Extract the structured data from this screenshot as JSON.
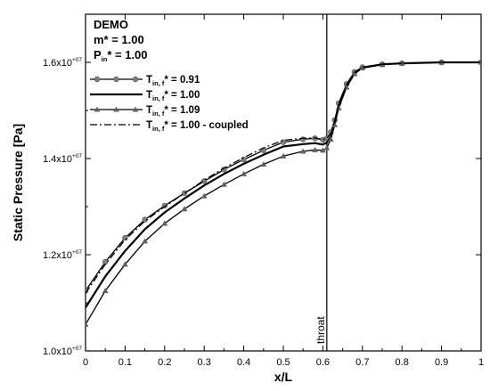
{
  "chart_data": {
    "type": "line",
    "title": "",
    "xlabel": "x/L",
    "ylabel": "Static Pressure [Pa]",
    "xlim": [
      0,
      1
    ],
    "ylim": [
      10000000,
      17000000
    ],
    "x_ticks": [
      0,
      0.1,
      0.2,
      0.3,
      0.4,
      0.5,
      0.6,
      0.7,
      0.8,
      0.9,
      1
    ],
    "x_tick_labels": [
      "0",
      "0.1",
      "0.2",
      "0.3",
      "0.4",
      "0.5",
      "0.6",
      "0.7",
      "0.8",
      "0.9",
      "1"
    ],
    "y_ticks": [
      10000000,
      12000000,
      14000000,
      16000000
    ],
    "y_tick_labels": [
      {
        "mant": "1.0x10",
        "exp": "+07"
      },
      {
        "mant": "1.2x10",
        "exp": "+07"
      },
      {
        "mant": "1.4x10",
        "exp": "+07"
      },
      {
        "mant": "1.6x10",
        "exp": "+07"
      }
    ],
    "grid": false,
    "legend_position": "top-left",
    "header": {
      "line1": "DEMO",
      "line2": "m* = 1.00",
      "line3_main": "P",
      "line3_sub": "in",
      "line3_rest": "* = 1.00"
    },
    "annotation": {
      "text": "throat",
      "x": 0.61
    },
    "series": [
      {
        "name_main": "T",
        "name_sub": "in, f",
        "name_rest": "* = 0.91",
        "color": "#000000",
        "marker": "circle",
        "marker_color": "#808080",
        "dash": "none",
        "width": 1.3,
        "x": [
          0,
          0.05,
          0.1,
          0.15,
          0.2,
          0.25,
          0.3,
          0.35,
          0.4,
          0.45,
          0.5,
          0.55,
          0.58,
          0.6,
          0.61,
          0.62,
          0.63,
          0.64,
          0.66,
          0.68,
          0.7,
          0.75,
          0.8,
          0.9,
          1.0
        ],
        "y": [
          11250000,
          11850000,
          12350000,
          12730000,
          13020000,
          13280000,
          13530000,
          13770000,
          13980000,
          14170000,
          14340000,
          14400000,
          14420000,
          14390000,
          14420000,
          14550000,
          14800000,
          15150000,
          15550000,
          15800000,
          15900000,
          15960000,
          15980000,
          16000000,
          16000000
        ]
      },
      {
        "name_main": "T",
        "name_sub": "in, f",
        "name_rest": "* = 1.00",
        "color": "#000000",
        "marker": "none",
        "dash": "none",
        "width": 2.2,
        "x": [
          0,
          0.05,
          0.1,
          0.15,
          0.2,
          0.25,
          0.3,
          0.35,
          0.4,
          0.45,
          0.5,
          0.55,
          0.58,
          0.6,
          0.61,
          0.62,
          0.63,
          0.64,
          0.66,
          0.68,
          0.7,
          0.75,
          0.8,
          0.9,
          1.0
        ],
        "y": [
          10900000,
          11550000,
          12080000,
          12530000,
          12880000,
          13170000,
          13440000,
          13680000,
          13890000,
          14080000,
          14250000,
          14300000,
          14320000,
          14290000,
          14330000,
          14450000,
          14750000,
          15100000,
          15520000,
          15780000,
          15890000,
          15960000,
          15980000,
          16000000,
          16000000
        ]
      },
      {
        "name_main": "T",
        "name_sub": "in, f",
        "name_rest": "* = 1.09",
        "color": "#000000",
        "marker": "triangle",
        "marker_color": "#606060",
        "dash": "none",
        "width": 1.3,
        "x": [
          0,
          0.05,
          0.1,
          0.15,
          0.2,
          0.25,
          0.3,
          0.35,
          0.4,
          0.45,
          0.5,
          0.55,
          0.58,
          0.6,
          0.61,
          0.62,
          0.63,
          0.64,
          0.66,
          0.68,
          0.7,
          0.75,
          0.8,
          0.9,
          1.0
        ],
        "y": [
          10550000,
          11250000,
          11800000,
          12280000,
          12650000,
          12950000,
          13220000,
          13460000,
          13680000,
          13880000,
          14050000,
          14150000,
          14180000,
          14170000,
          14220000,
          14400000,
          14700000,
          15050000,
          15480000,
          15760000,
          15880000,
          15950000,
          15980000,
          16000000,
          16000000
        ]
      },
      {
        "name_main": "T",
        "name_sub": "in, f",
        "name_rest": "* = 1.00 - coupled",
        "color": "#000000",
        "marker": "none",
        "dash": "8,3,2,3",
        "width": 1.3,
        "x": [
          0,
          0.05,
          0.1,
          0.15,
          0.2,
          0.25,
          0.3,
          0.35,
          0.4,
          0.45,
          0.5,
          0.55,
          0.58,
          0.6,
          0.61,
          0.62,
          0.63,
          0.64,
          0.66,
          0.68,
          0.7,
          0.75,
          0.8,
          0.9,
          1.0
        ],
        "y": [
          11200000,
          11800000,
          12310000,
          12700000,
          13000000,
          13280000,
          13550000,
          13800000,
          14020000,
          14220000,
          14380000,
          14420000,
          14430000,
          14390000,
          14420000,
          14520000,
          14780000,
          15130000,
          15540000,
          15790000,
          15900000,
          15960000,
          15980000,
          16000000,
          16000000
        ]
      }
    ]
  }
}
